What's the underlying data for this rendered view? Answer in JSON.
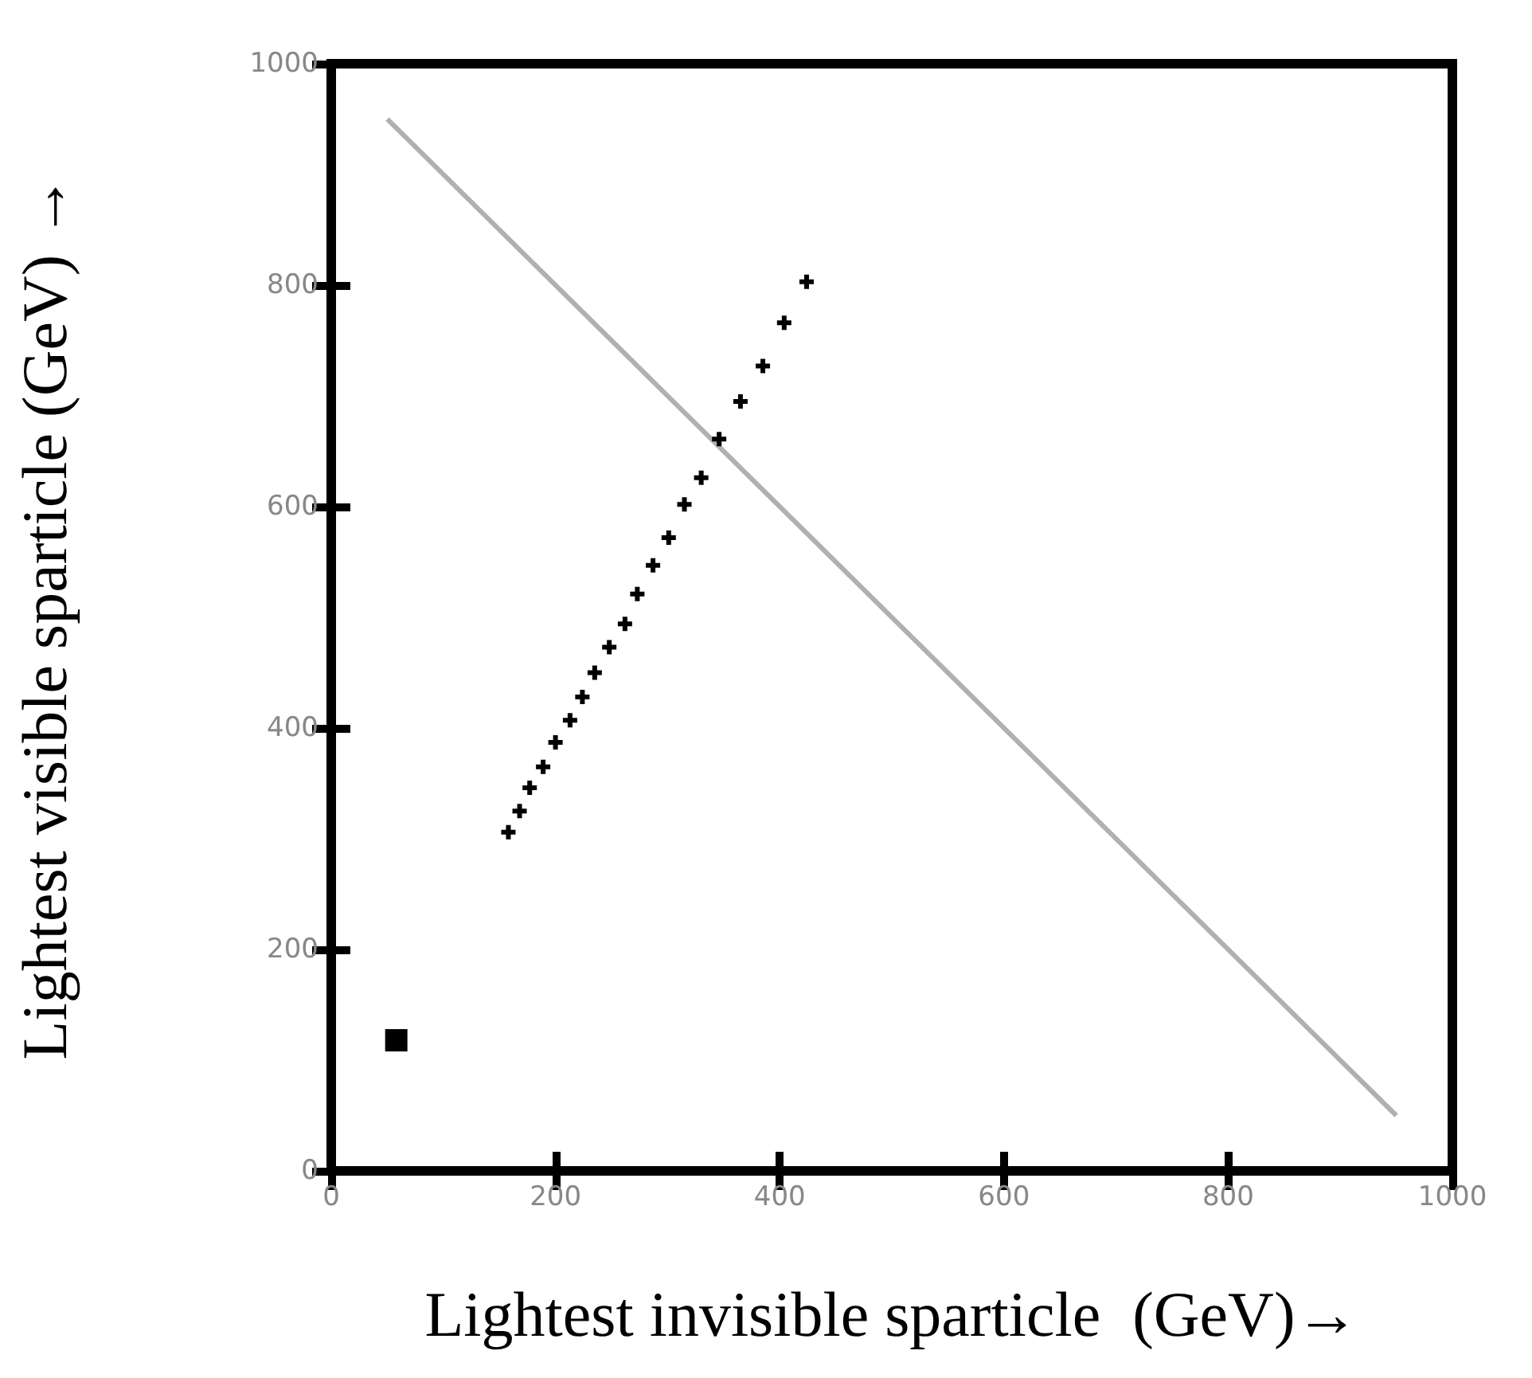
{
  "chart_data": {
    "type": "scatter",
    "xlabel": "Lightest invisible sparticle  (GeV)→",
    "ylabel": "Lightest visible sparticle (GeV) →",
    "xlim": [
      0,
      1000
    ],
    "ylim": [
      0,
      1000
    ],
    "xticks": [
      0,
      200,
      400,
      600,
      800,
      1000
    ],
    "yticks": [
      0,
      200,
      400,
      600,
      800,
      1000
    ],
    "grid": false,
    "series": [
      {
        "type": "line",
        "color": "#b0b0b0",
        "marker": "none",
        "line_style": "solid",
        "x": [
          50,
          950
        ],
        "values": [
          950,
          50
        ]
      },
      {
        "color": "#000000",
        "marker": "cross",
        "x": [
          424,
          404,
          385,
          365,
          346,
          330,
          315,
          301,
          287,
          273,
          262,
          248,
          235,
          224,
          213,
          200,
          189,
          177,
          168,
          158
        ],
        "values": [
          803,
          766,
          727,
          695,
          661,
          626,
          602,
          572,
          547,
          521,
          494,
          473,
          450,
          428,
          407,
          387,
          365,
          346,
          325,
          306
        ]
      },
      {
        "color": "#000000",
        "marker": "square",
        "x": [
          58
        ],
        "values": [
          118
        ]
      }
    ]
  }
}
